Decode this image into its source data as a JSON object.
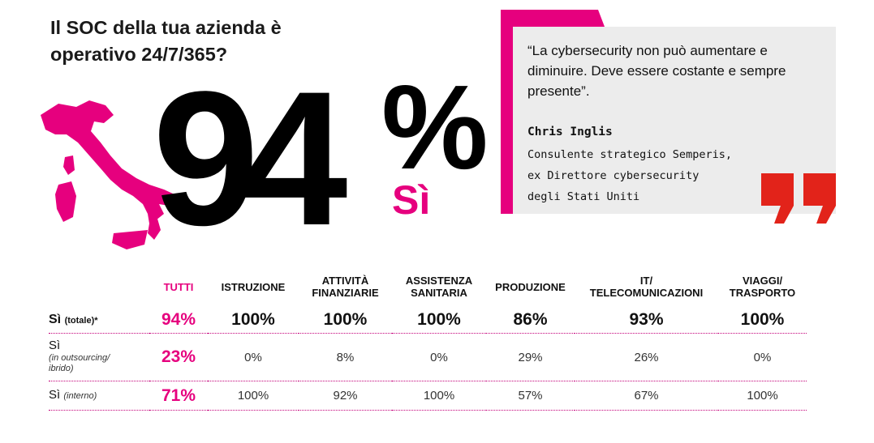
{
  "question": {
    "line1": "Il SOC della tua azienda è",
    "line2": "operativo 24/7/365?"
  },
  "headline": {
    "number": "94",
    "percent": "%",
    "label": "Sì",
    "label_color": "#e6007e"
  },
  "quote": {
    "text": "“La cybersecurity non può aumentare e diminuire. Deve essere costante e sempre presente”.",
    "author": "Chris Inglis",
    "role_line1": "Consulente strategico Semperis,",
    "role_line2": "ex Direttore cybersecurity",
    "role_line3": "degli Stati Uniti",
    "box_color": "#ececec",
    "accent_color": "#e6007e",
    "marks_color": "#e2231a"
  },
  "table": {
    "headers": [
      {
        "line1": "TUTTI",
        "line2": ""
      },
      {
        "line1": "ISTRUZIONE",
        "line2": ""
      },
      {
        "line1": "ATTIVITÀ",
        "line2": "FINANZIARIE"
      },
      {
        "line1": "ASSISTENZA",
        "line2": "SANITARIA"
      },
      {
        "line1": "PRODUZIONE",
        "line2": ""
      },
      {
        "line1": "IT/",
        "line2": "TELECOMUNICAZIONI"
      },
      {
        "line1": "VIAGGI/",
        "line2": "TRASPORTO"
      }
    ],
    "rows": [
      {
        "label": "Sì",
        "sublabel": "(totale)*",
        "values": [
          "94%",
          "100%",
          "100%",
          "100%",
          "86%",
          "93%",
          "100%"
        ]
      },
      {
        "label": "Sì",
        "sublabel_line1": "(in outsourcing/",
        "sublabel_line2": "ibrido)",
        "values": [
          "23%",
          "0%",
          "8%",
          "0%",
          "29%",
          "26%",
          "0%"
        ]
      },
      {
        "label": "Sì",
        "sublabel": "(interno)",
        "values": [
          "71%",
          "100%",
          "92%",
          "100%",
          "57%",
          "67%",
          "100%"
        ]
      }
    ]
  }
}
